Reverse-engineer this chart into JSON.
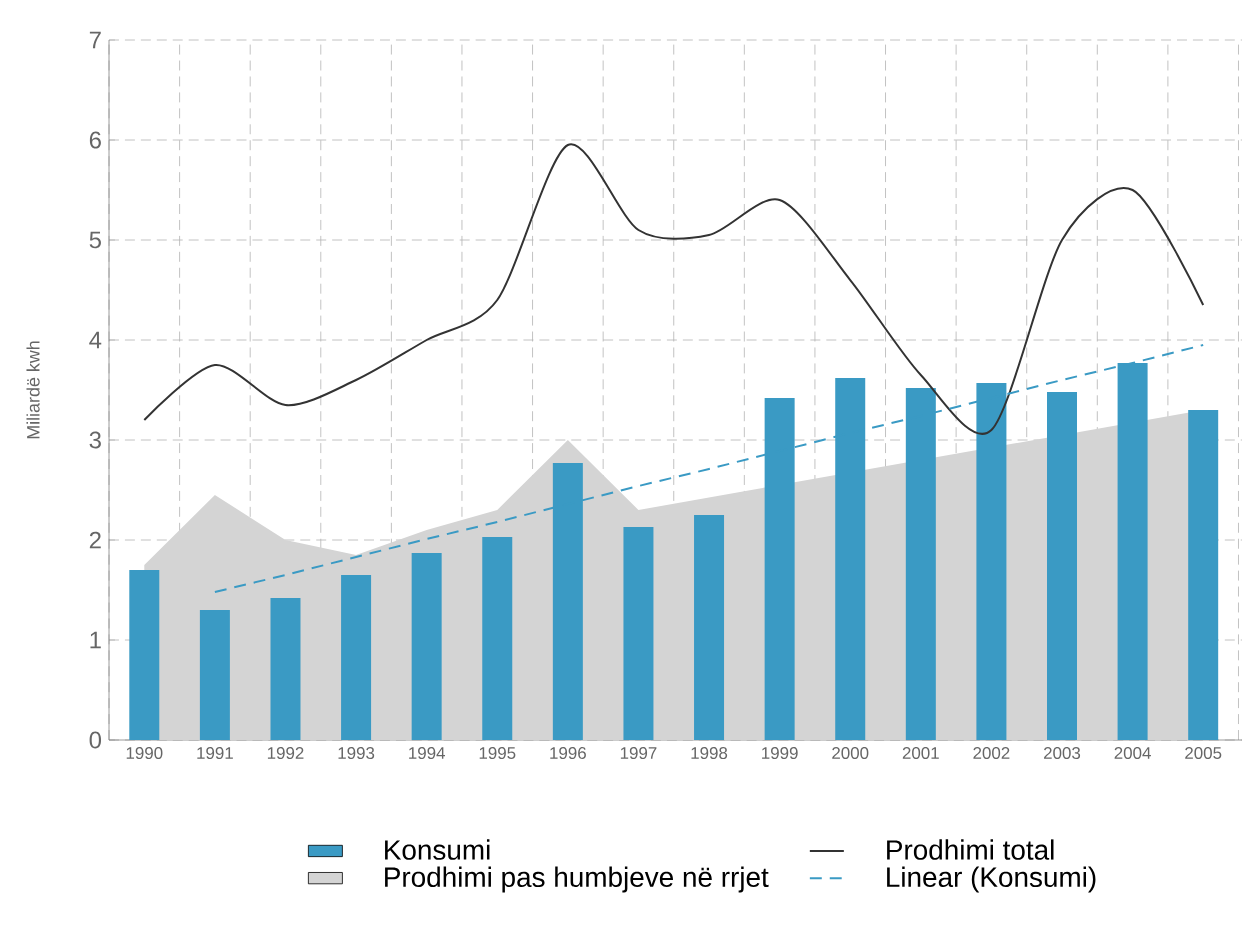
{
  "chart_data": {
    "type": "bar",
    "ylabel": "Miliardë kwh",
    "categories": [
      "1990",
      "1991",
      "1992",
      "1993",
      "1994",
      "1995",
      "1996",
      "1997",
      "1998",
      "1999",
      "2000",
      "2001",
      "2002",
      "2003",
      "2004",
      "2005"
    ],
    "series": [
      {
        "name": "Konsumi",
        "color": "#3a9ac4",
        "values": [
          1.7,
          1.3,
          1.42,
          1.65,
          1.87,
          2.03,
          2.77,
          2.13,
          2.25,
          3.42,
          3.62,
          3.52,
          3.57,
          3.48,
          3.77,
          3.3
        ]
      },
      {
        "name": "Prodhimi pas humbjeve në rrjet",
        "type": "area",
        "color": "#d4d4d4",
        "values": [
          1.75,
          2.45,
          2.0,
          1.85,
          2.1,
          2.3,
          3.0,
          2.3,
          null,
          null,
          null,
          null,
          null,
          null,
          null,
          3.3
        ]
      },
      {
        "name": "Prodhimi total",
        "type": "line",
        "color": "#333333",
        "values": [
          3.2,
          3.75,
          3.35,
          3.6,
          4.0,
          4.4,
          5.95,
          5.1,
          5.05,
          5.4,
          4.6,
          3.65,
          3.1,
          5.0,
          5.5,
          4.35
        ]
      },
      {
        "name": "Linear (Konsumi)",
        "type": "line",
        "color": "#3a9ac4",
        "line_style": "dashed",
        "values": [
          null,
          1.48,
          1.65,
          1.83,
          2.01,
          2.18,
          2.36,
          2.54,
          2.71,
          2.89,
          3.07,
          3.24,
          3.42,
          3.6,
          3.77,
          3.95
        ]
      }
    ],
    "ylim": [
      0,
      7
    ],
    "yticks": [
      0,
      1,
      2,
      3,
      4,
      5,
      6,
      7
    ],
    "grid": true,
    "legend": "bottom"
  }
}
